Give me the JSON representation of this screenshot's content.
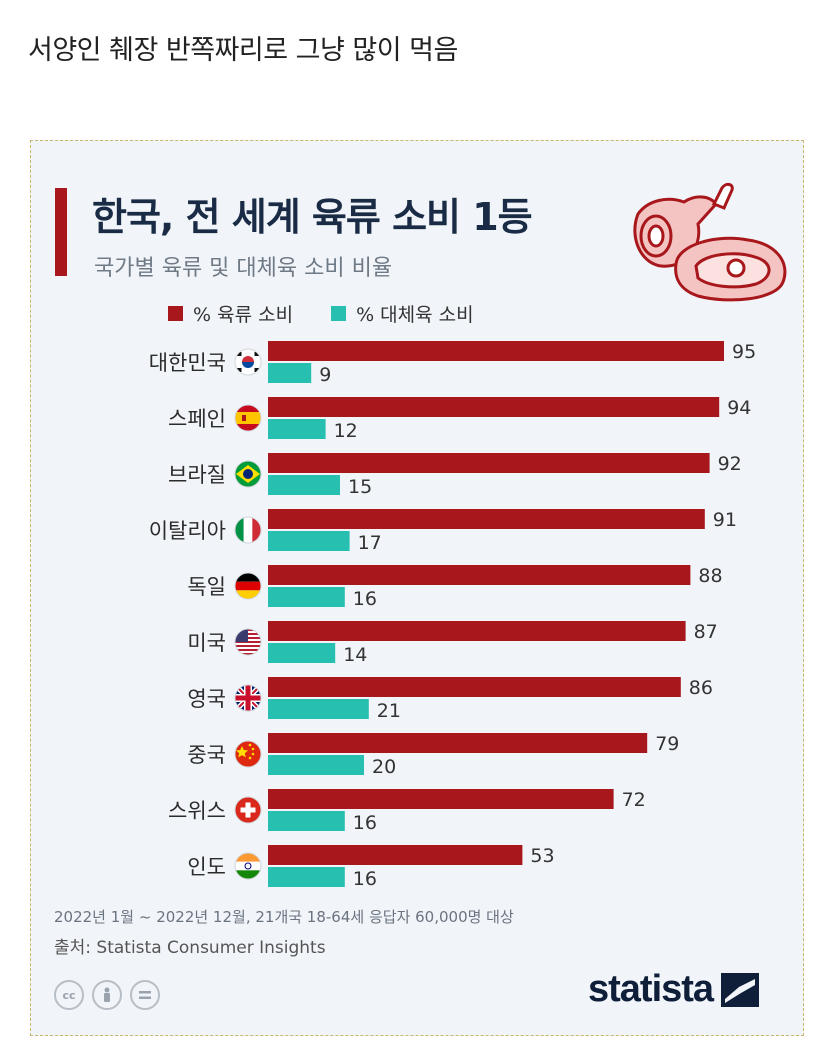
{
  "post": {
    "title": "서양인 췌장 반쪽짜리로 그냥 많이 먹음"
  },
  "chart_data": {
    "type": "bar",
    "orientation": "horizontal",
    "title": "한국, 전 세계 육류 소비 1등",
    "subtitle": "국가별 육류 및 대체육 소비 비율",
    "categories": [
      "대한민국",
      "스페인",
      "브라질",
      "이탈리아",
      "독일",
      "미국",
      "영국",
      "중국",
      "스위스",
      "인도"
    ],
    "series": [
      {
        "name": "% 육류 소비",
        "color": "#a8171c",
        "values": [
          95,
          94,
          92,
          91,
          88,
          87,
          86,
          79,
          72,
          53
        ]
      },
      {
        "name": "% 대체육 소비",
        "color": "#27c0b0",
        "values": [
          9,
          12,
          15,
          17,
          16,
          14,
          21,
          20,
          16,
          16
        ]
      }
    ],
    "xlim": [
      0,
      100
    ],
    "grid": false,
    "legend": "top",
    "flags": [
      "korea",
      "spain",
      "brazil",
      "italy",
      "germany",
      "usa",
      "uk",
      "china",
      "switzerland",
      "india"
    ]
  },
  "footer": {
    "note": "2022년 1월 ~ 2022년 12월, 21개국 18-64세 응답자 60,000명 대상",
    "source": "출처: Statista Consumer Insights",
    "brand": "statista",
    "cc_icons": [
      "cc",
      "by",
      "nd"
    ]
  },
  "colors": {
    "accent": "#a8171c",
    "teal": "#27c0b0",
    "title": "#1a2b45",
    "background": "#f1f5f9"
  }
}
